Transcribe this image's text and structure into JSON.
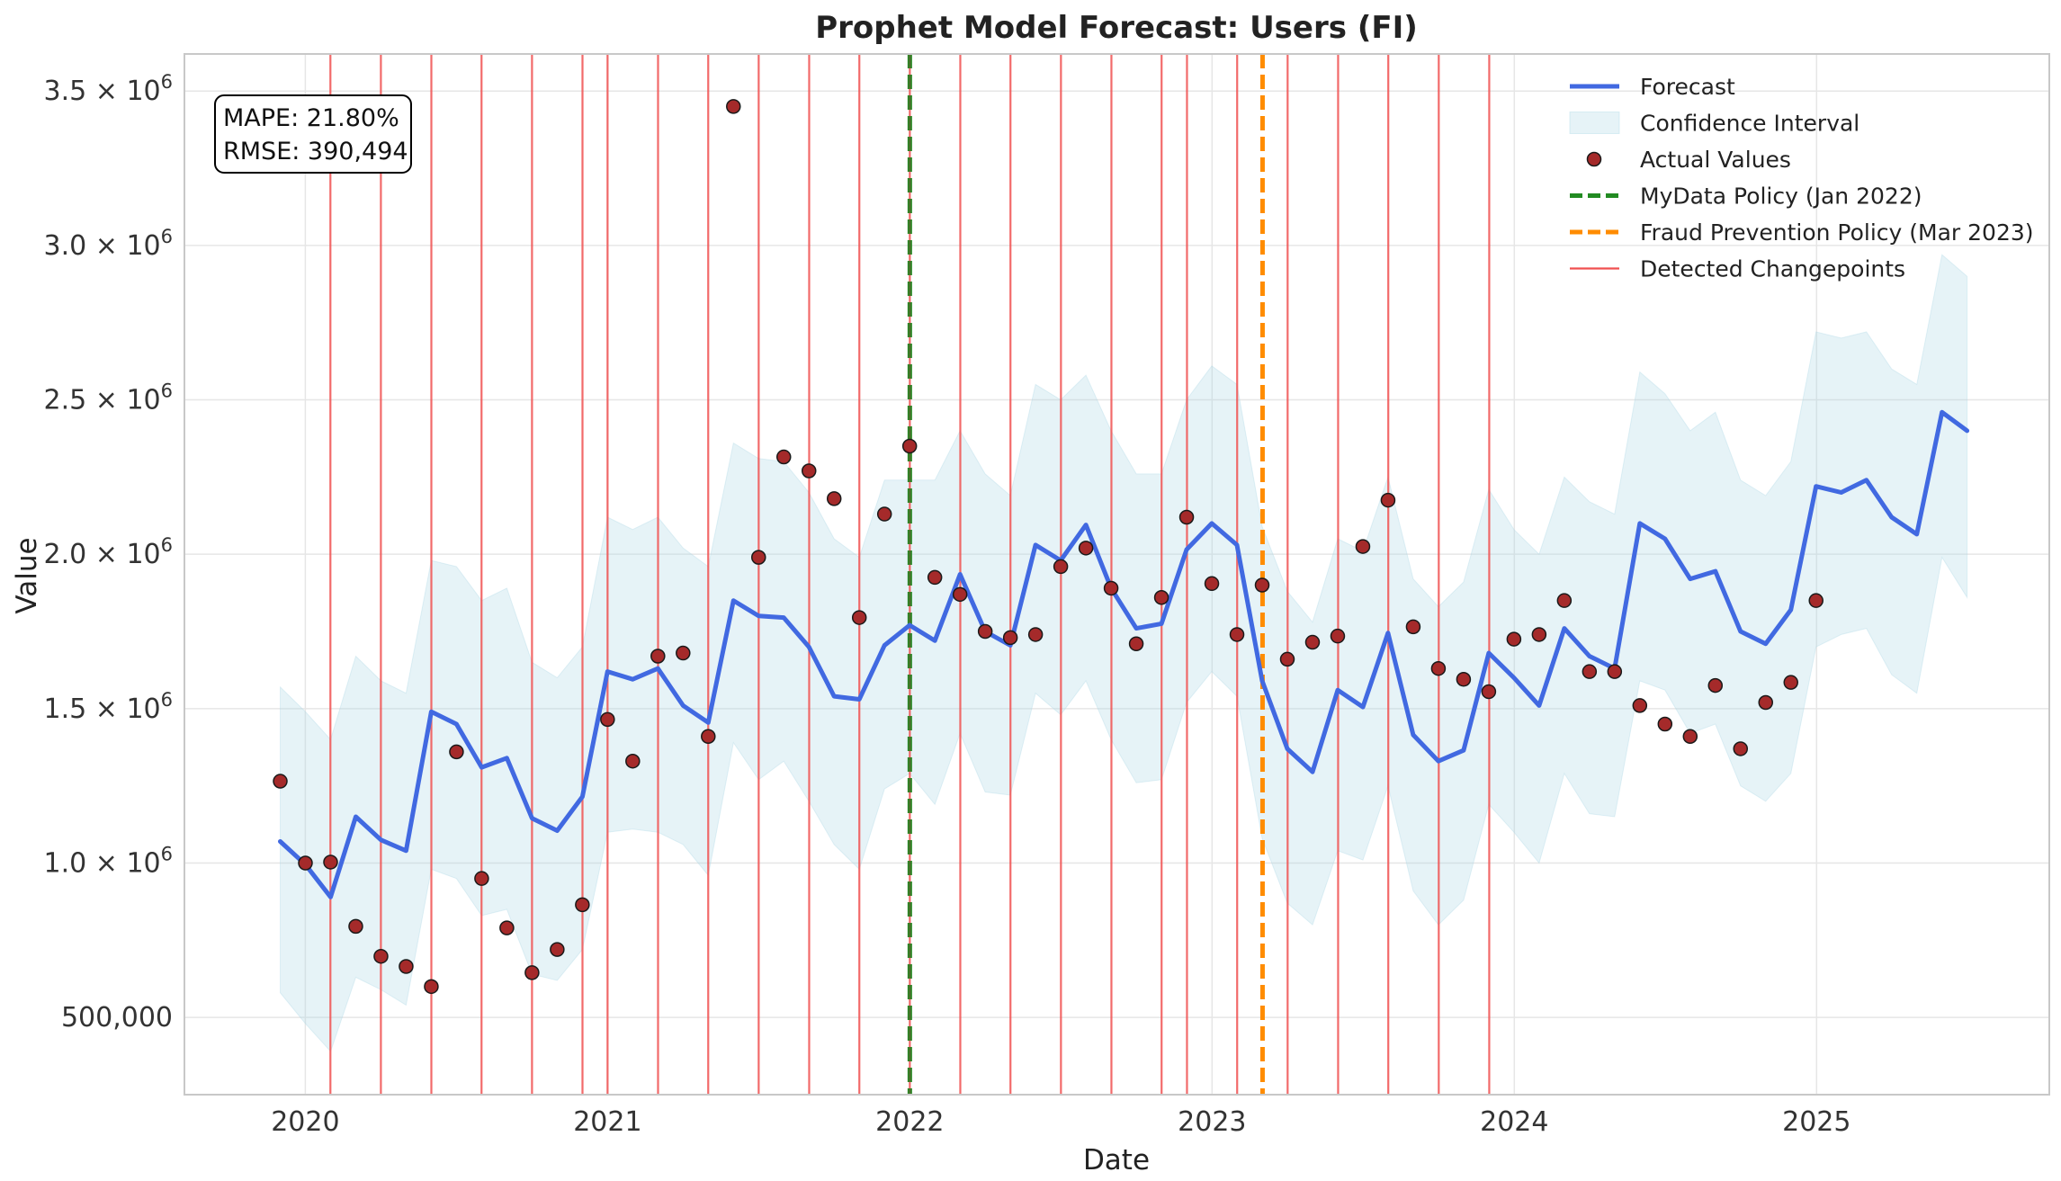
{
  "chart_data": {
    "type": "line",
    "title": "Prophet Model Forecast: Users (FI)",
    "xlabel": "Date",
    "ylabel": "Value",
    "xlim": [
      2019.6,
      2025.77
    ],
    "ylim": [
      250000,
      3620000
    ],
    "x_ticks": [
      {
        "value": 2020,
        "label": "2020"
      },
      {
        "value": 2021,
        "label": "2021"
      },
      {
        "value": 2022,
        "label": "2022"
      },
      {
        "value": 2023,
        "label": "2023"
      },
      {
        "value": 2024,
        "label": "2024"
      },
      {
        "value": 2025,
        "label": "2025"
      }
    ],
    "y_ticks": [
      {
        "value": 500000,
        "base": "500,000",
        "exp": ""
      },
      {
        "value": 1000000,
        "base": "1.0 × 10",
        "exp": "6"
      },
      {
        "value": 1500000,
        "base": "1.5 × 10",
        "exp": "6"
      },
      {
        "value": 2000000,
        "base": "2.0 × 10",
        "exp": "6"
      },
      {
        "value": 2500000,
        "base": "2.5 × 10",
        "exp": "6"
      },
      {
        "value": 3000000,
        "base": "3.0 × 10",
        "exp": "6"
      },
      {
        "value": 3500000,
        "base": "3.5 × 10",
        "exp": "6"
      }
    ],
    "grid": true,
    "metrics": [
      "MAPE: 21.80%",
      "RMSE: 390,494"
    ],
    "legend": {
      "position": "top-right",
      "entries": [
        {
          "label": "Forecast",
          "kind": "line",
          "color": "#4169E1"
        },
        {
          "label": "Confidence Interval",
          "kind": "patch",
          "color": "#ADD8E6"
        },
        {
          "label": "Actual Values",
          "kind": "marker",
          "color": "#A52A2A"
        },
        {
          "label": "MyData Policy (Jan 2022)",
          "kind": "dashed",
          "color": "#228B22"
        },
        {
          "label": "Fraud Prevention Policy (Mar 2023)",
          "kind": "dashed",
          "color": "#FF8C00"
        },
        {
          "label": "Detected Changepoints",
          "kind": "thin",
          "color": "#F05050"
        }
      ]
    },
    "forecast": {
      "name": "Forecast",
      "color": "#4169E1",
      "x_start": 2019.917,
      "step": 0.0833,
      "values": [
        1070000,
        995000,
        890000,
        1150000,
        1075000,
        1040000,
        1490000,
        1450000,
        1310000,
        1340000,
        1145000,
        1105000,
        1215000,
        1620000,
        1595000,
        1630000,
        1510000,
        1455000,
        1850000,
        1800000,
        1795000,
        1700000,
        1540000,
        1530000,
        1705000,
        1770000,
        1720000,
        1935000,
        1750000,
        1705000,
        2030000,
        1980000,
        2095000,
        1890000,
        1760000,
        1775000,
        2015000,
        2100000,
        2030000,
        1590000,
        1370000,
        1295000,
        1560000,
        1505000,
        1745000,
        1415000,
        1330000,
        1365000,
        1680000,
        1600000,
        1510000,
        1760000,
        1670000,
        1630000,
        2100000,
        2050000,
        1920000,
        1945000,
        1750000,
        1710000,
        1820000,
        2220000,
        2200000,
        2240000,
        2120000,
        2065000,
        2460000,
        2400000
      ]
    },
    "confidence_interval": {
      "name": "Confidence Interval",
      "color": "#ADD8E6",
      "upper": [
        1570000,
        1490000,
        1400000,
        1670000,
        1590000,
        1550000,
        1980000,
        1960000,
        1850000,
        1890000,
        1650000,
        1600000,
        1700000,
        2120000,
        2080000,
        2120000,
        2020000,
        1960000,
        2360000,
        2310000,
        2300000,
        2200000,
        2050000,
        1990000,
        2240000,
        2240000,
        2240000,
        2400000,
        2260000,
        2190000,
        2550000,
        2500000,
        2580000,
        2400000,
        2260000,
        2260000,
        2500000,
        2610000,
        2550000,
        2090000,
        1880000,
        1780000,
        2050000,
        2010000,
        2250000,
        1920000,
        1830000,
        1910000,
        2210000,
        2080000,
        2000000,
        2250000,
        2170000,
        2130000,
        2590000,
        2520000,
        2400000,
        2460000,
        2240000,
        2190000,
        2300000,
        2720000,
        2700000,
        2720000,
        2600000,
        2550000,
        2970000,
        2900000
      ]
    },
    "lower": [
      580000,
      480000,
      390000,
      630000,
      590000,
      540000,
      980000,
      950000,
      830000,
      850000,
      640000,
      620000,
      720000,
      1100000,
      1110000,
      1100000,
      1060000,
      960000,
      1390000,
      1270000,
      1330000,
      1200000,
      1060000,
      980000,
      1240000,
      1290000,
      1190000,
      1420000,
      1230000,
      1220000,
      1550000,
      1480000,
      1590000,
      1400000,
      1260000,
      1270000,
      1520000,
      1620000,
      1540000,
      1080000,
      870000,
      800000,
      1040000,
      1010000,
      1250000,
      910000,
      800000,
      880000,
      1190000,
      1100000,
      1000000,
      1290000,
      1160000,
      1150000,
      1590000,
      1560000,
      1420000,
      1450000,
      1250000,
      1200000,
      1290000,
      1700000,
      1740000,
      1760000,
      1610000,
      1550000,
      1990000,
      1860000
    ],
    "actual": {
      "name": "Actual Values",
      "color": "#A52A2A",
      "values": [
        1265000,
        1000000,
        1003000,
        795000,
        698000,
        665000,
        600000,
        1360000,
        950000,
        790000,
        645000,
        720000,
        865000,
        1465000,
        1330000,
        1670000,
        1680000,
        1410000,
        3450000,
        1990000,
        2315000,
        2270000,
        2180000,
        1795000,
        2130000,
        2350000,
        1925000,
        1870000,
        1750000,
        1730000,
        1740000,
        1960000,
        2020000,
        1890000,
        1710000,
        1860000,
        2120000,
        1905000,
        1740000,
        1900000,
        1660000,
        1715000,
        1735000,
        2025000,
        2175000,
        1765000,
        1630000,
        1595000,
        1555000,
        1725000,
        1740000,
        1850000,
        1620000,
        1620000,
        1510000,
        1450000,
        1410000,
        1575000,
        1370000,
        1520000,
        1585000,
        1850000
      ]
    },
    "changepoints": [
      2020.083,
      2020.25,
      2020.417,
      2020.583,
      2020.75,
      2020.917,
      2021.0,
      2021.167,
      2021.333,
      2021.5,
      2021.667,
      2021.833,
      2022.0,
      2022.167,
      2022.333,
      2022.5,
      2022.667,
      2022.833,
      2022.917,
      2023.083,
      2023.25,
      2023.417,
      2023.583,
      2023.75,
      2023.917
    ],
    "policy_lines": [
      {
        "name": "MyData Policy (Jan 2022)",
        "x": 2022.0,
        "color": "#228B22",
        "overlay": "#556B2F"
      },
      {
        "name": "Fraud Prevention Policy (Mar 2023)",
        "x": 2023.167,
        "color": "#FF8C00"
      }
    ]
  }
}
